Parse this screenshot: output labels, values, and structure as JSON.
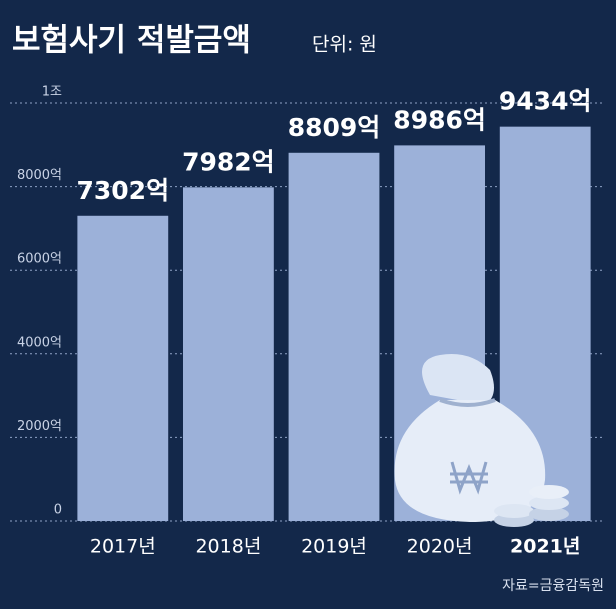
{
  "chart_data": {
    "type": "bar",
    "title": "보험사기 적발금액",
    "subtitle": "단위: 원",
    "categories": [
      "2017년",
      "2018년",
      "2019년",
      "2020년",
      "2021년"
    ],
    "values": [
      7302,
      7982,
      8809,
      8986,
      9434
    ],
    "value_labels": [
      "7302억",
      "7982억",
      "8809억",
      "8986억",
      "9434억"
    ],
    "color": "#9cb1d9",
    "ylim": [
      0,
      10000
    ],
    "yticks": [
      0,
      {
        "value": 2000,
        "label": "2000억"
      },
      {
        "value": 4000,
        "label": "4000억"
      },
      {
        "value": 6000,
        "label": "6000억"
      },
      {
        "value": 8000,
        "label": "8000억"
      },
      {
        "value": 10000,
        "label": "1조"
      }
    ],
    "grid": true,
    "source": "자료=금융감독원"
  }
}
